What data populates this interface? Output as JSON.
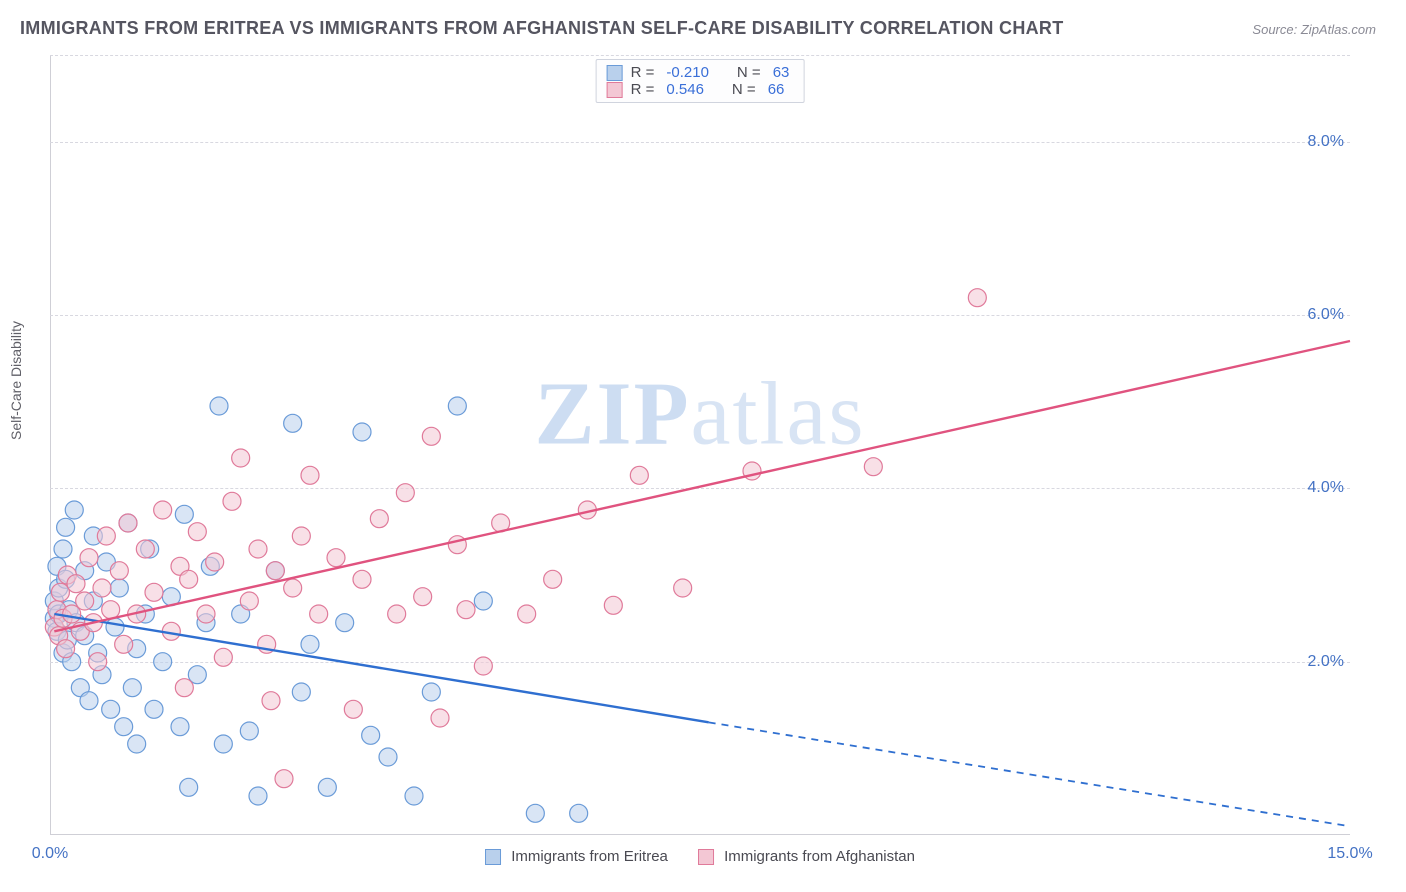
{
  "title": "IMMIGRANTS FROM ERITREA VS IMMIGRANTS FROM AFGHANISTAN SELF-CARE DISABILITY CORRELATION CHART",
  "source_label": "Source:",
  "source_value": "ZipAtlas.com",
  "ylabel": "Self-Care Disability",
  "watermark_bold": "ZIP",
  "watermark_rest": "atlas",
  "chart": {
    "type": "scatter",
    "xlim": [
      0,
      15
    ],
    "ylim": [
      0,
      9
    ],
    "xticks": [
      {
        "v": 0,
        "label": "0.0%"
      },
      {
        "v": 15,
        "label": "15.0%"
      }
    ],
    "yticks": [
      {
        "v": 2,
        "label": "2.0%"
      },
      {
        "v": 4,
        "label": "4.0%"
      },
      {
        "v": 6,
        "label": "6.0%"
      },
      {
        "v": 8,
        "label": "8.0%"
      }
    ],
    "gridlines_h": [
      2,
      4,
      6,
      8,
      9
    ],
    "background_color": "#ffffff",
    "grid_color": "#d8d8e0",
    "axis_color": "#cfcfd6",
    "tick_label_color": "#4472c4",
    "marker_radius": 9,
    "marker_opacity": 0.55,
    "line_width": 2.4,
    "series": [
      {
        "name": "Immigrants from Eritrea",
        "fill": "#b9d0ec",
        "stroke": "#6a9bd8",
        "line_color": "#2f6fd0",
        "R": "-0.210",
        "N": "63",
        "regression": {
          "x1": 0.05,
          "y1": 2.55,
          "x2": 7.6,
          "y2": 1.3,
          "x3": 15,
          "y3": 0.1
        },
        "points": [
          [
            0.05,
            2.7
          ],
          [
            0.05,
            2.5
          ],
          [
            0.08,
            2.35
          ],
          [
            0.08,
            3.1
          ],
          [
            0.1,
            2.55
          ],
          [
            0.1,
            2.85
          ],
          [
            0.15,
            3.3
          ],
          [
            0.15,
            2.1
          ],
          [
            0.18,
            2.95
          ],
          [
            0.18,
            3.55
          ],
          [
            0.2,
            2.25
          ],
          [
            0.22,
            2.6
          ],
          [
            0.25,
            2.0
          ],
          [
            0.28,
            3.75
          ],
          [
            0.3,
            2.45
          ],
          [
            0.35,
            1.7
          ],
          [
            0.4,
            2.3
          ],
          [
            0.4,
            3.05
          ],
          [
            0.45,
            1.55
          ],
          [
            0.5,
            2.7
          ],
          [
            0.5,
            3.45
          ],
          [
            0.55,
            2.1
          ],
          [
            0.6,
            1.85
          ],
          [
            0.65,
            3.15
          ],
          [
            0.7,
            1.45
          ],
          [
            0.75,
            2.4
          ],
          [
            0.8,
            2.85
          ],
          [
            0.85,
            1.25
          ],
          [
            0.9,
            3.6
          ],
          [
            0.95,
            1.7
          ],
          [
            1.0,
            2.15
          ],
          [
            1.0,
            1.05
          ],
          [
            1.1,
            2.55
          ],
          [
            1.15,
            3.3
          ],
          [
            1.2,
            1.45
          ],
          [
            1.3,
            2.0
          ],
          [
            1.4,
            2.75
          ],
          [
            1.5,
            1.25
          ],
          [
            1.55,
            3.7
          ],
          [
            1.6,
            0.55
          ],
          [
            1.7,
            1.85
          ],
          [
            1.8,
            2.45
          ],
          [
            1.85,
            3.1
          ],
          [
            1.95,
            4.95
          ],
          [
            2.0,
            1.05
          ],
          [
            2.2,
            2.55
          ],
          [
            2.3,
            1.2
          ],
          [
            2.4,
            0.45
          ],
          [
            2.6,
            3.05
          ],
          [
            2.8,
            4.75
          ],
          [
            2.9,
            1.65
          ],
          [
            3.0,
            2.2
          ],
          [
            3.2,
            0.55
          ],
          [
            3.4,
            2.45
          ],
          [
            3.6,
            4.65
          ],
          [
            3.7,
            1.15
          ],
          [
            3.9,
            0.9
          ],
          [
            4.2,
            0.45
          ],
          [
            4.4,
            1.65
          ],
          [
            4.7,
            4.95
          ],
          [
            5.0,
            2.7
          ],
          [
            5.6,
            0.25
          ],
          [
            6.1,
            0.25
          ]
        ]
      },
      {
        "name": "Immigrants from Afghanistan",
        "fill": "#f3c7d4",
        "stroke": "#e07a9a",
        "line_color": "#e0537f",
        "R": "0.546",
        "N": "66",
        "regression": {
          "x1": 0.05,
          "y1": 2.35,
          "x2": 15,
          "y2": 5.7
        },
        "points": [
          [
            0.05,
            2.4
          ],
          [
            0.08,
            2.6
          ],
          [
            0.1,
            2.3
          ],
          [
            0.12,
            2.8
          ],
          [
            0.15,
            2.5
          ],
          [
            0.18,
            2.15
          ],
          [
            0.2,
            3.0
          ],
          [
            0.25,
            2.55
          ],
          [
            0.3,
            2.9
          ],
          [
            0.35,
            2.35
          ],
          [
            0.4,
            2.7
          ],
          [
            0.45,
            3.2
          ],
          [
            0.5,
            2.45
          ],
          [
            0.55,
            2.0
          ],
          [
            0.6,
            2.85
          ],
          [
            0.65,
            3.45
          ],
          [
            0.7,
            2.6
          ],
          [
            0.8,
            3.05
          ],
          [
            0.85,
            2.2
          ],
          [
            0.9,
            3.6
          ],
          [
            1.0,
            2.55
          ],
          [
            1.1,
            3.3
          ],
          [
            1.2,
            2.8
          ],
          [
            1.3,
            3.75
          ],
          [
            1.4,
            2.35
          ],
          [
            1.5,
            3.1
          ],
          [
            1.55,
            1.7
          ],
          [
            1.6,
            2.95
          ],
          [
            1.7,
            3.5
          ],
          [
            1.8,
            2.55
          ],
          [
            1.9,
            3.15
          ],
          [
            2.0,
            2.05
          ],
          [
            2.1,
            3.85
          ],
          [
            2.2,
            4.35
          ],
          [
            2.3,
            2.7
          ],
          [
            2.4,
            3.3
          ],
          [
            2.5,
            2.2
          ],
          [
            2.55,
            1.55
          ],
          [
            2.6,
            3.05
          ],
          [
            2.7,
            0.65
          ],
          [
            2.8,
            2.85
          ],
          [
            2.9,
            3.45
          ],
          [
            3.0,
            4.15
          ],
          [
            3.1,
            2.55
          ],
          [
            3.3,
            3.2
          ],
          [
            3.5,
            1.45
          ],
          [
            3.6,
            2.95
          ],
          [
            3.8,
            3.65
          ],
          [
            4.0,
            2.55
          ],
          [
            4.1,
            3.95
          ],
          [
            4.3,
            2.75
          ],
          [
            4.4,
            4.6
          ],
          [
            4.5,
            1.35
          ],
          [
            4.7,
            3.35
          ],
          [
            4.8,
            2.6
          ],
          [
            5.0,
            1.95
          ],
          [
            5.2,
            3.6
          ],
          [
            5.5,
            2.55
          ],
          [
            5.8,
            2.95
          ],
          [
            6.2,
            3.75
          ],
          [
            6.5,
            2.65
          ],
          [
            6.8,
            4.15
          ],
          [
            7.3,
            2.85
          ],
          [
            8.1,
            4.2
          ],
          [
            9.5,
            4.25
          ],
          [
            10.7,
            6.2
          ]
        ]
      }
    ]
  },
  "legend_top_labels": {
    "R": "R =",
    "N": "N ="
  },
  "legend_bottom": [
    {
      "series_ref": 0
    },
    {
      "series_ref": 1
    }
  ]
}
